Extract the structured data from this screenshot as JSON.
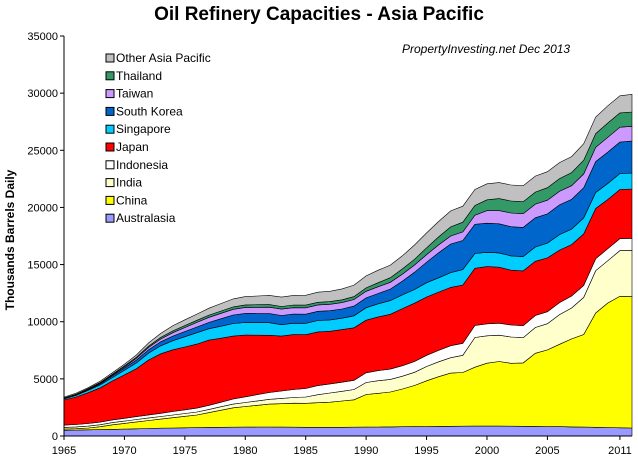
{
  "chart_data": {
    "type": "area",
    "stacked": true,
    "title": "Oil Refinery Capacities - Asia Pacific",
    "annotation": "PropertyInvesting.net  Dec 2013",
    "xlabel": "",
    "ylabel": "Thousands Barrels Daily",
    "xlim": [
      1965,
      2012
    ],
    "ylim": [
      0,
      35000
    ],
    "x_ticks": [
      1965,
      1970,
      1975,
      1980,
      1985,
      1990,
      1995,
      2000,
      2005,
      2011
    ],
    "y_ticks": [
      0,
      5000,
      10000,
      15000,
      20000,
      25000,
      30000,
      35000
    ],
    "grid": false,
    "legend_position": "top-left",
    "x": [
      1965,
      1966,
      1967,
      1968,
      1969,
      1970,
      1971,
      1972,
      1973,
      1974,
      1975,
      1976,
      1977,
      1978,
      1979,
      1980,
      1981,
      1982,
      1983,
      1984,
      1985,
      1986,
      1987,
      1988,
      1989,
      1990,
      1991,
      1992,
      1993,
      1994,
      1995,
      1996,
      1997,
      1998,
      1999,
      2000,
      2001,
      2002,
      2003,
      2004,
      2005,
      2006,
      2007,
      2008,
      2009,
      2010,
      2011,
      2012
    ],
    "series": [
      {
        "name": "Australasia",
        "color": "#9999ff",
        "values": [
          500,
          520,
          540,
          560,
          580,
          600,
          630,
          660,
          680,
          700,
          720,
          740,
          750,
          760,
          770,
          780,
          790,
          790,
          780,
          770,
          760,
          760,
          760,
          760,
          770,
          780,
          790,
          800,
          810,
          820,
          830,
          840,
          850,
          860,
          870,
          870,
          870,
          860,
          850,
          840,
          830,
          820,
          800,
          780,
          760,
          740,
          720,
          700
        ]
      },
      {
        "name": "China",
        "color": "#ffff00",
        "values": [
          100,
          120,
          160,
          250,
          400,
          500,
          600,
          700,
          800,
          900,
          1000,
          1100,
          1300,
          1500,
          1700,
          1800,
          1900,
          2000,
          2050,
          2100,
          2100,
          2150,
          2200,
          2300,
          2400,
          2850,
          2950,
          3050,
          3300,
          3600,
          4000,
          4350,
          4650,
          4700,
          5150,
          5500,
          5650,
          5500,
          5550,
          6400,
          6700,
          7200,
          7700,
          8100,
          10000,
          10900,
          11500,
          11500
        ]
      },
      {
        "name": "India",
        "color": "#ffffcc",
        "values": [
          150,
          160,
          170,
          180,
          190,
          200,
          210,
          220,
          230,
          240,
          250,
          260,
          280,
          300,
          320,
          350,
          380,
          420,
          460,
          500,
          550,
          700,
          800,
          850,
          900,
          1050,
          1100,
          1100,
          1120,
          1150,
          1250,
          1300,
          1350,
          1500,
          2600,
          2400,
          2300,
          2300,
          2200,
          2250,
          2300,
          2600,
          2700,
          3250,
          3700,
          3700,
          4000,
          4050
        ]
      },
      {
        "name": "Indonesia",
        "color": "#ffffff",
        "values": [
          200,
          210,
          220,
          230,
          240,
          250,
          260,
          270,
          280,
          300,
          320,
          340,
          360,
          400,
          450,
          500,
          550,
          600,
          650,
          700,
          750,
          800,
          800,
          800,
          800,
          850,
          880,
          900,
          920,
          950,
          980,
          1000,
          1050,
          1050,
          1050,
          1050,
          1050,
          1050,
          1050,
          1050,
          1050,
          1050,
          1050,
          1050,
          1050,
          1050,
          1050,
          1050
        ]
      },
      {
        "name": "Japan",
        "color": "#ff0000",
        "values": [
          2200,
          2400,
          2700,
          3000,
          3400,
          3800,
          4200,
          4800,
          5200,
          5400,
          5500,
          5600,
          5700,
          5600,
          5500,
          5400,
          5200,
          5000,
          4800,
          4800,
          4700,
          4700,
          4600,
          4600,
          4600,
          4600,
          4700,
          4800,
          5000,
          5100,
          5100,
          5100,
          5100,
          5100,
          5000,
          5000,
          4900,
          4800,
          4800,
          4750,
          4700,
          4600,
          4500,
          4500,
          4400,
          4300,
          4300,
          4300
        ]
      },
      {
        "name": "Singapore",
        "color": "#00ccff",
        "values": [
          100,
          150,
          200,
          250,
          300,
          400,
          500,
          600,
          700,
          800,
          900,
          1000,
          1000,
          1050,
          1100,
          1100,
          1100,
          1100,
          1000,
          1000,
          1000,
          1000,
          1000,
          1000,
          1050,
          1100,
          1150,
          1200,
          1200,
          1200,
          1250,
          1250,
          1300,
          1350,
          1300,
          1250,
          1250,
          1250,
          1250,
          1250,
          1300,
          1350,
          1350,
          1400,
          1400,
          1400,
          1400,
          1400
        ]
      },
      {
        "name": "South Korea",
        "color": "#0066cc",
        "values": [
          20,
          30,
          50,
          100,
          150,
          200,
          250,
          300,
          350,
          400,
          450,
          500,
          550,
          650,
          750,
          800,
          800,
          800,
          800,
          800,
          800,
          800,
          800,
          800,
          850,
          850,
          900,
          1000,
          1200,
          1500,
          1800,
          2200,
          2500,
          2550,
          2550,
          2550,
          2550,
          2550,
          2550,
          2550,
          2550,
          2600,
          2600,
          2650,
          2700,
          2750,
          2750,
          2800
        ]
      },
      {
        "name": "Taiwan",
        "color": "#cc99ff",
        "values": [
          30,
          40,
          50,
          60,
          80,
          100,
          150,
          200,
          250,
          300,
          350,
          400,
          450,
          480,
          500,
          520,
          540,
          560,
          560,
          560,
          560,
          560,
          560,
          560,
          570,
          580,
          590,
          600,
          620,
          640,
          660,
          680,
          700,
          750,
          800,
          1100,
          1150,
          1200,
          1200,
          1200,
          1200,
          1200,
          1200,
          1200,
          1250,
          1300,
          1300,
          1300
        ]
      },
      {
        "name": "Thailand",
        "color": "#339966",
        "values": [
          30,
          40,
          50,
          60,
          70,
          80,
          100,
          120,
          140,
          160,
          180,
          180,
          190,
          200,
          210,
          220,
          230,
          230,
          230,
          230,
          230,
          230,
          240,
          250,
          260,
          300,
          350,
          400,
          450,
          500,
          600,
          700,
          800,
          850,
          850,
          950,
          1050,
          1050,
          1050,
          1050,
          1100,
          1100,
          1150,
          1200,
          1200,
          1250,
          1250,
          1250
        ]
      },
      {
        "name": "Other Asia Pacific",
        "color": "#c0c0c0",
        "values": [
          70,
          80,
          90,
          110,
          130,
          150,
          200,
          280,
          350,
          450,
          500,
          550,
          600,
          650,
          700,
          730,
          760,
          800,
          820,
          840,
          860,
          880,
          900,
          950,
          1000,
          1050,
          1100,
          1100,
          1150,
          1250,
          1300,
          1350,
          1400,
          1400,
          1400,
          1400,
          1400,
          1400,
          1400,
          1400,
          1400,
          1400,
          1400,
          1450,
          1450,
          1500,
          1500,
          1550
        ]
      }
    ]
  }
}
